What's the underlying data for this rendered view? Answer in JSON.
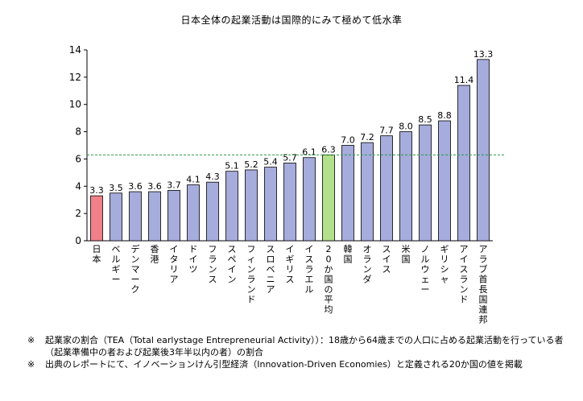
{
  "chart_data": {
    "type": "bar",
    "title": "日本全体の起業活動は国際的にみて極めて低水準",
    "categories": [
      "日本",
      "ベルギー",
      "デンマーク",
      "香港",
      "イタリア",
      "ドイツ",
      "フランス",
      "スペイン",
      "フィンランド",
      "スロベニア",
      "イギリス",
      "イスラエル",
      "20か国の平均",
      "韓国",
      "オランダ",
      "スイス",
      "米国",
      "ノルウェー",
      "ギリシャ",
      "アイスランド",
      "アラブ首長国連邦"
    ],
    "values": [
      3.3,
      3.5,
      3.6,
      3.6,
      3.7,
      4.1,
      4.3,
      5.1,
      5.2,
      5.4,
      5.7,
      6.1,
      6.3,
      7.0,
      7.2,
      7.7,
      8.0,
      8.5,
      8.8,
      11.4,
      13.3
    ],
    "value_labels": [
      "3.3",
      "3.5",
      "3.6",
      "3.6",
      "3.7",
      "4.1",
      "4.3",
      "5.1",
      "5.2",
      "5.4",
      "5.7",
      "6.1",
      "6.3",
      "7.0",
      "7.2",
      "7.7",
      "8.0",
      "8.5",
      "8.8",
      "11.4",
      "13.3"
    ],
    "ylim": [
      0,
      14
    ],
    "yticks": [
      0,
      2,
      4,
      6,
      8,
      10,
      12,
      14
    ],
    "reference_line": 6.3,
    "colors": {
      "default": "#a6acdb",
      "highlight_japan": "#f0808a",
      "highlight_average": "#b3e08a",
      "reference_line": "#2e9a4a",
      "bar_stroke": "#000000"
    }
  },
  "notes": [
    {
      "mark": "※",
      "text": "起業家の割合（TEA（Total earlystage Entrepreneurial Activity））：18歳から64歳までの人口に占める起業活動を行っている者（起業準備中の者および起業後3年半以内の者）の割合"
    },
    {
      "mark": "※",
      "text": "出典のレポートにて、イノベーションけん引型経済（Innovation-Driven Economies）と定義される20か国の値を掲載"
    }
  ]
}
